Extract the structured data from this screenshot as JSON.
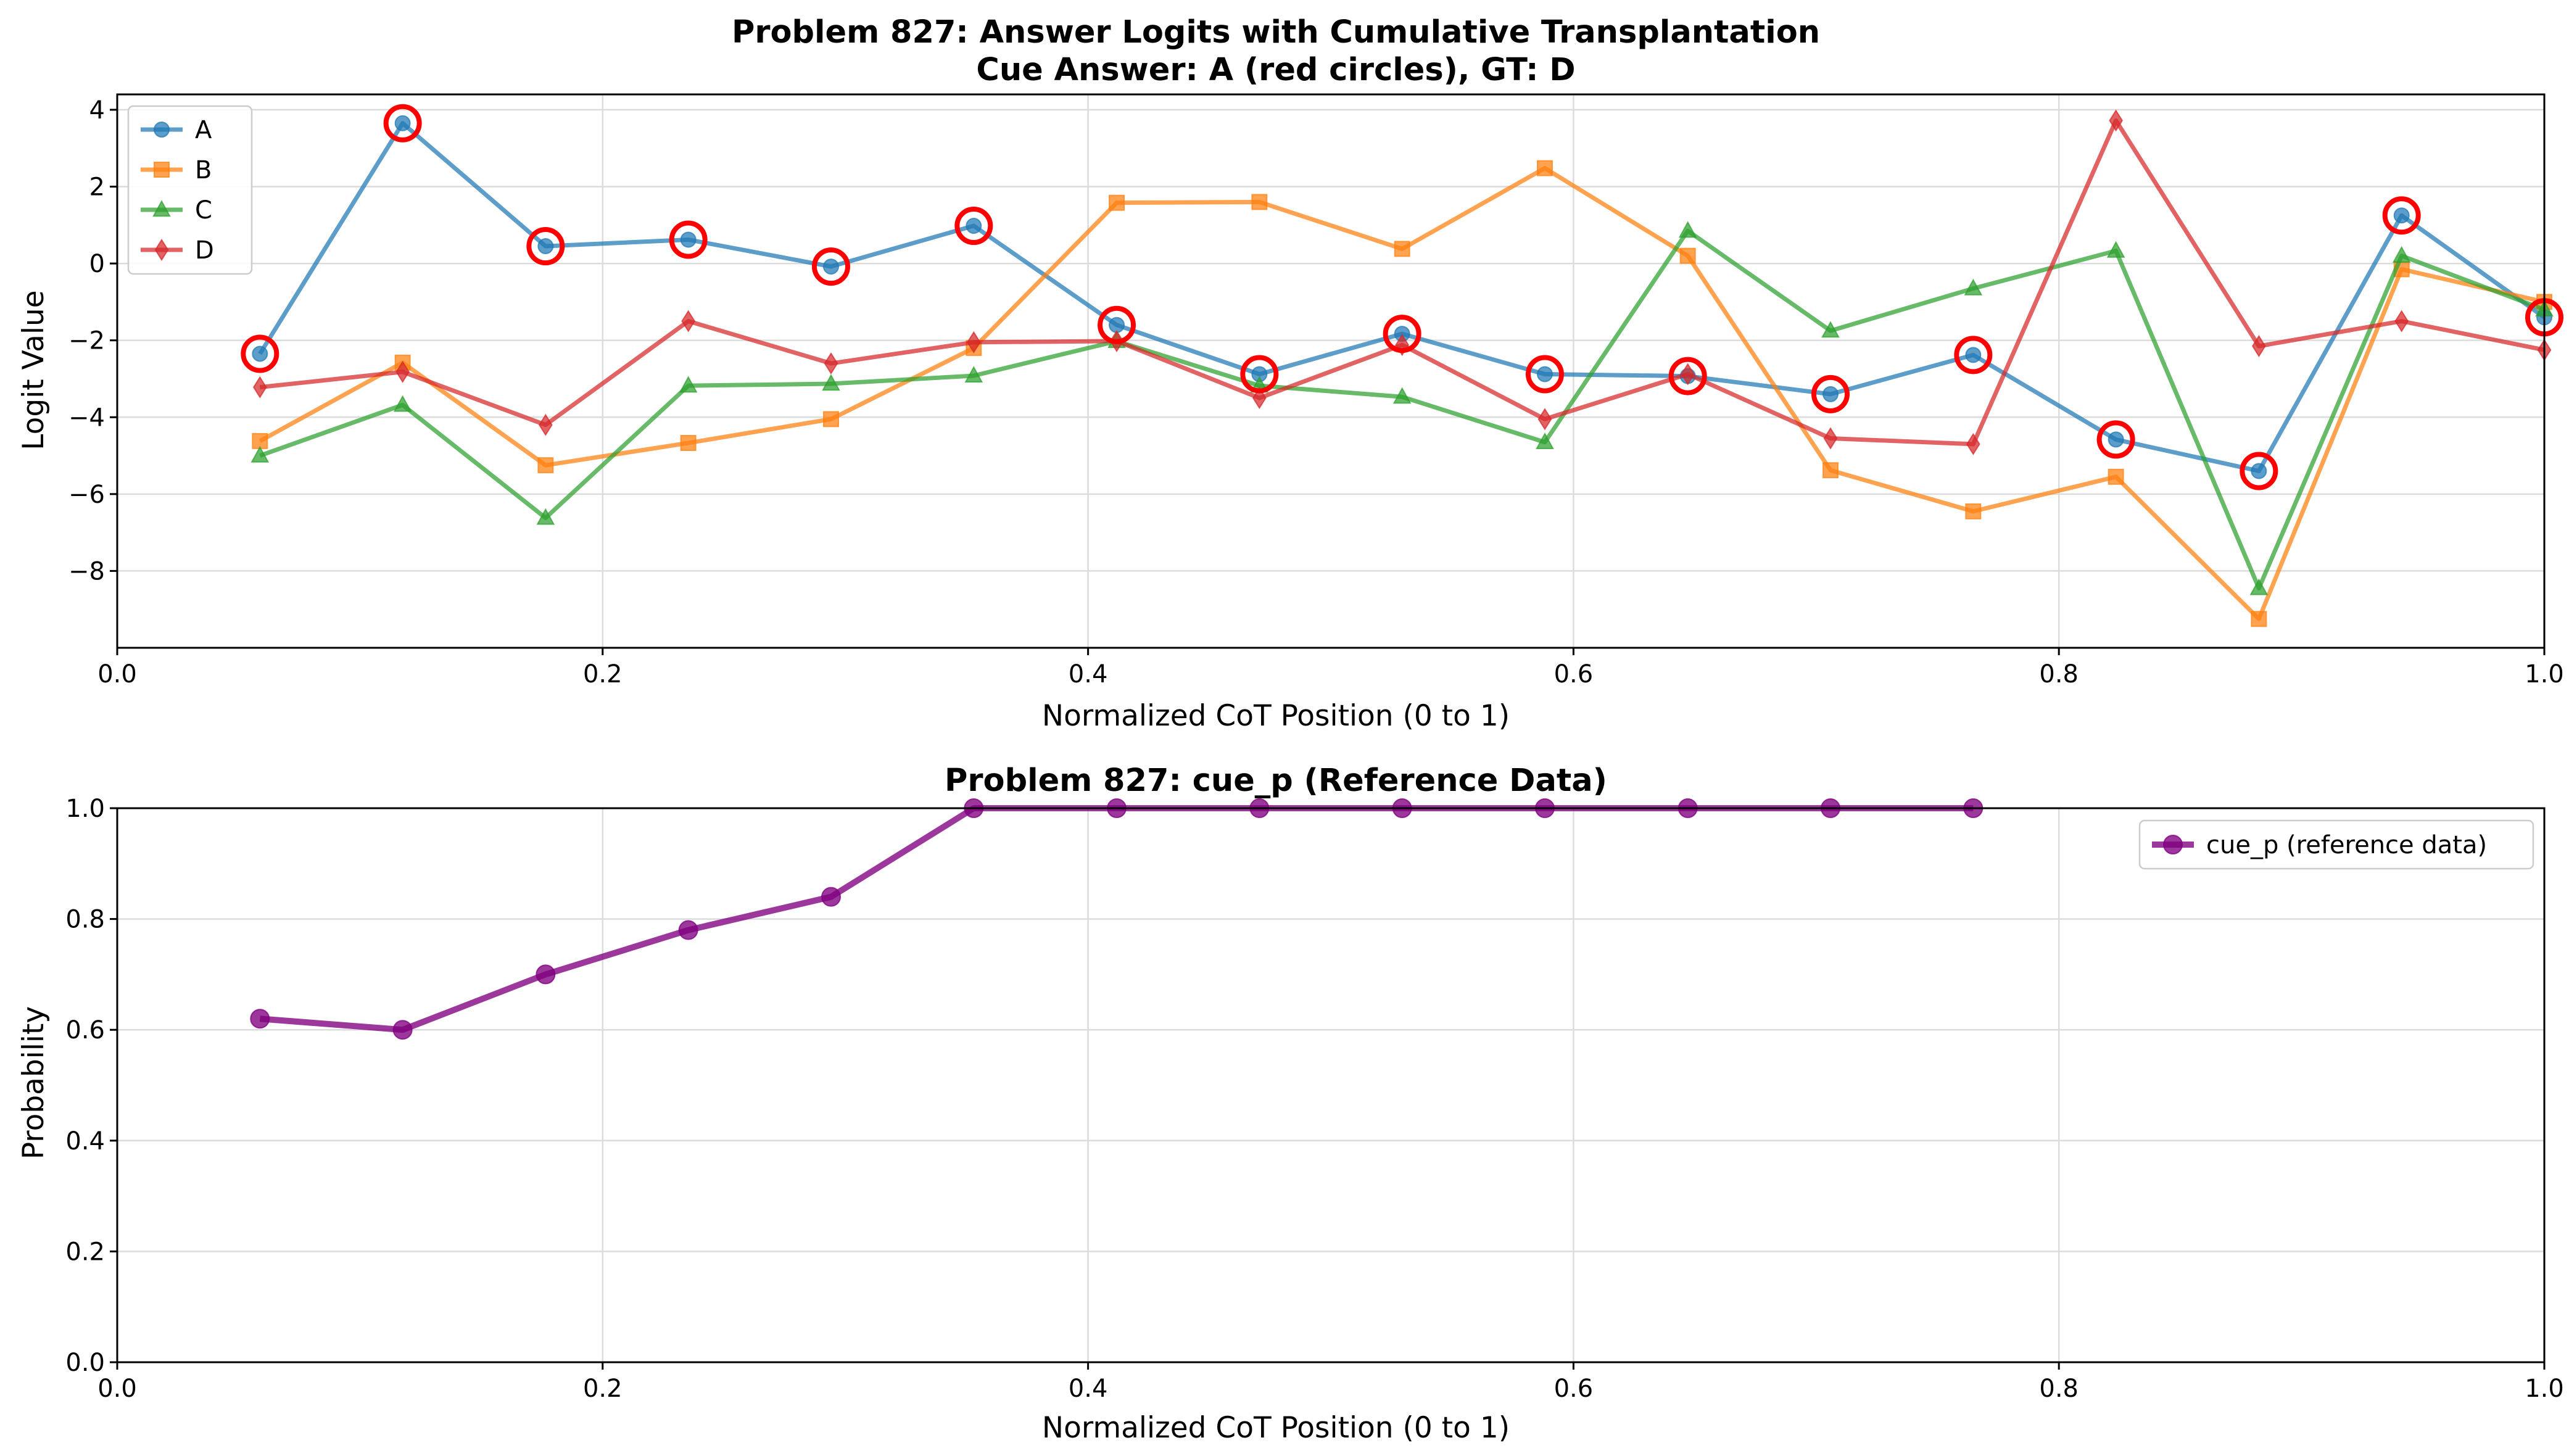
{
  "chart_data": [
    {
      "type": "line",
      "title": "Problem 827: Answer Logits with Cumulative Transplantation",
      "subtitle": "Cue Answer: A (red circles), GT: D",
      "xlabel": "Normalized CoT Position (0 to 1)",
      "ylabel": "Logit Value",
      "xlim": [
        0,
        1
      ],
      "ylim": [
        -10,
        4.4
      ],
      "xticks": [
        0.0,
        0.2,
        0.4,
        0.6,
        0.8,
        1.0
      ],
      "xtick_labels": [
        "0.0",
        "0.2",
        "0.4",
        "0.6",
        "0.8",
        "1.0"
      ],
      "yticks": [
        -8,
        -6,
        -4,
        -2,
        0,
        2,
        4
      ],
      "ytick_labels": [
        "−8",
        "−6",
        "−4",
        "−2",
        "0",
        "2",
        "4"
      ],
      "grid": true,
      "legend_position": "upper-left",
      "x": [
        0.0588,
        0.1176,
        0.1765,
        0.2353,
        0.2941,
        0.3529,
        0.4118,
        0.4706,
        0.5294,
        0.5882,
        0.6471,
        0.7059,
        0.7647,
        0.8235,
        0.8824,
        0.9412,
        1.0
      ],
      "series": [
        {
          "name": "A",
          "color": "#1f77b4",
          "marker": "circle",
          "values": [
            -2.35,
            3.65,
            0.45,
            0.62,
            -0.08,
            0.98,
            -1.6,
            -2.88,
            -1.83,
            -2.88,
            -2.93,
            -3.4,
            -2.38,
            -4.58,
            -5.4,
            1.25,
            -1.4
          ]
        },
        {
          "name": "B",
          "color": "#ff7f0e",
          "marker": "square",
          "values": [
            -4.62,
            -2.58,
            -5.25,
            -4.67,
            -4.05,
            -2.2,
            1.58,
            1.6,
            0.38,
            2.48,
            0.2,
            -5.38,
            -6.45,
            -5.55,
            -9.25,
            -0.15,
            -1.0
          ]
        },
        {
          "name": "C",
          "color": "#2ca02c",
          "marker": "triangle",
          "values": [
            -5.0,
            -3.68,
            -6.62,
            -3.18,
            -3.13,
            -2.92,
            -2.02,
            -3.18,
            -3.47,
            -4.65,
            0.85,
            -1.75,
            -0.65,
            0.33,
            -8.45,
            0.2,
            -1.2
          ]
        },
        {
          "name": "D",
          "color": "#d62728",
          "marker": "diamond",
          "values": [
            -3.22,
            -2.82,
            -4.2,
            -1.5,
            -2.6,
            -2.05,
            -2.02,
            -3.5,
            -2.12,
            -4.05,
            -2.88,
            -4.55,
            -4.7,
            3.72,
            -2.15,
            -1.5,
            -2.25
          ]
        }
      ],
      "cue_highlight": {
        "series": "A",
        "color": "#ff0000"
      }
    },
    {
      "type": "line",
      "title": "Problem 827: cue_p (Reference Data)",
      "xlabel": "Normalized CoT Position (0 to 1)",
      "ylabel": "Probability",
      "xlim": [
        0,
        1
      ],
      "ylim": [
        0,
        1
      ],
      "xticks": [
        0.0,
        0.2,
        0.4,
        0.6,
        0.8,
        1.0
      ],
      "xtick_labels": [
        "0.0",
        "0.2",
        "0.4",
        "0.6",
        "0.8",
        "1.0"
      ],
      "yticks": [
        0.0,
        0.2,
        0.4,
        0.6,
        0.8,
        1.0
      ],
      "ytick_labels": [
        "0.0",
        "0.2",
        "0.4",
        "0.6",
        "0.8",
        "1.0"
      ],
      "grid": true,
      "legend_position": "upper-right",
      "x": [
        0.0588,
        0.1176,
        0.1765,
        0.2353,
        0.2941,
        0.3529,
        0.4118,
        0.4706,
        0.5294,
        0.5882,
        0.6471,
        0.7059,
        0.7647
      ],
      "series": [
        {
          "name": "cue_p (reference data)",
          "color": "#800080",
          "marker": "circle",
          "values": [
            0.62,
            0.6,
            0.7,
            0.78,
            0.84,
            1.0,
            1.0,
            1.0,
            1.0,
            1.0,
            1.0,
            1.0,
            1.0
          ]
        }
      ]
    }
  ]
}
